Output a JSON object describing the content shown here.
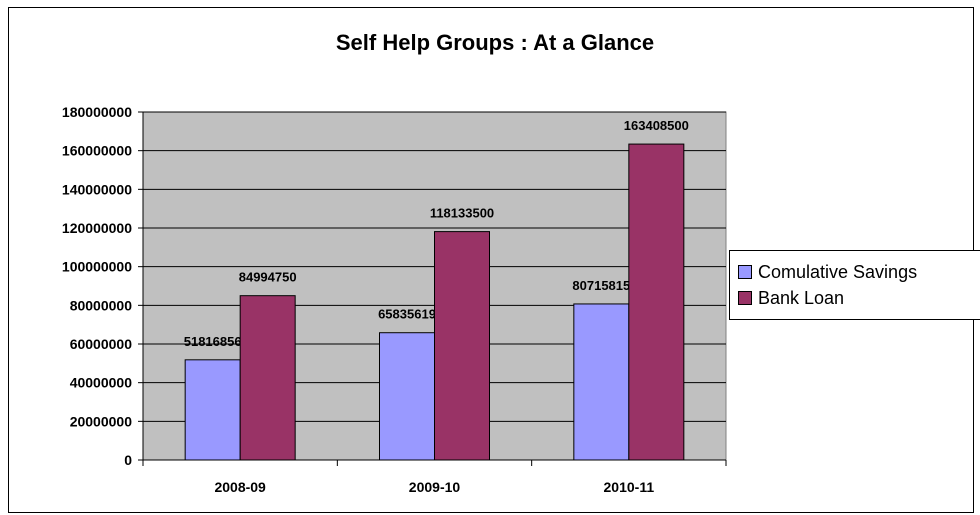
{
  "chart_data": {
    "type": "bar",
    "title": "Self Help Groups : At a Glance",
    "categories": [
      "2008-09",
      "2009-10",
      "2010-11"
    ],
    "series": [
      {
        "name": "Comulative Savings",
        "values": [
          51816856,
          65835619,
          80715815
        ],
        "color": "#9999ff"
      },
      {
        "name": "Bank Loan",
        "values": [
          84994750,
          118133500,
          163408500
        ],
        "color": "#993366"
      }
    ],
    "data_labels": [
      [
        "51816856",
        "65835619",
        "80715815"
      ],
      [
        "84994750",
        "118133500",
        "163408500"
      ]
    ],
    "ylim": [
      0,
      180000000
    ],
    "yticks": [
      "0",
      "20000000",
      "40000000",
      "60000000",
      "80000000",
      "100000000",
      "120000000",
      "140000000",
      "160000000",
      "180000000"
    ],
    "xlabel": "",
    "ylabel": "",
    "grid": true,
    "legend_position": "right",
    "plot_background": "#c0c0c0"
  }
}
